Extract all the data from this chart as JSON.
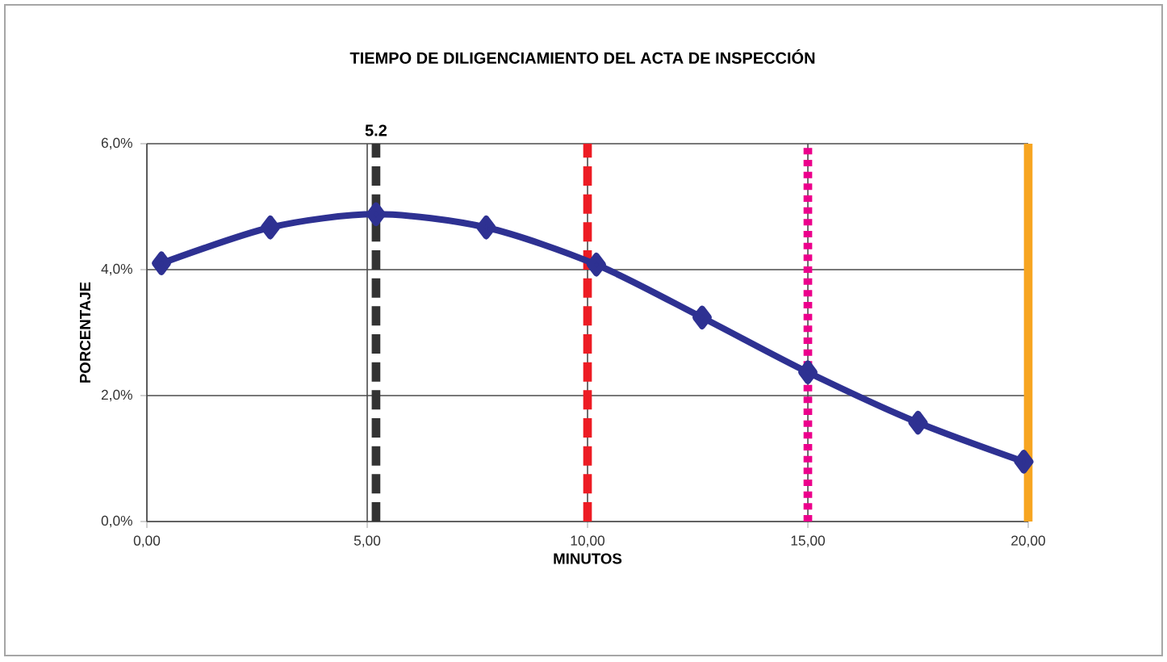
{
  "chart_data": {
    "type": "line",
    "title": "TIEMPO DE DILIGENCIAMIENTO DEL ACTA DE INSPECCIÓN",
    "xlabel": "MINUTOS",
    "ylabel": "PORCENTAJE",
    "x": [
      0.33,
      2.8,
      5.2,
      7.7,
      10.2,
      12.6,
      15.0,
      17.5,
      19.9
    ],
    "series": [
      {
        "color": "#2e3192",
        "values": [
          4.1,
          4.67,
          4.88,
          4.67,
          4.08,
          3.24,
          2.37,
          1.57,
          0.95
        ]
      }
    ],
    "xlim": [
      0,
      20
    ],
    "ylim": [
      0,
      6
    ],
    "xticks": [
      {
        "value": 0,
        "label": "0,00"
      },
      {
        "value": 5,
        "label": "5,00"
      },
      {
        "value": 10,
        "label": "10,00"
      },
      {
        "value": 15,
        "label": "15,00"
      },
      {
        "value": 20,
        "label": "20,00"
      }
    ],
    "yticks": [
      {
        "value": 0,
        "label": "0,0%"
      },
      {
        "value": 2,
        "label": "2,0%"
      },
      {
        "value": 4,
        "label": "4,0%"
      },
      {
        "value": 6,
        "label": "6,0%"
      }
    ],
    "grid": true,
    "marker": "diamond",
    "line_style": "solid",
    "ref_lines": [
      {
        "axis": "x",
        "value": 5.2,
        "label": "5.2",
        "color": "#333333",
        "line_style": "dashed"
      },
      {
        "axis": "x",
        "value": 10,
        "color": "#ed1c24",
        "line_style": "dashed"
      },
      {
        "axis": "x",
        "value": 15,
        "color": "#ec008c",
        "line_style": "dotted"
      },
      {
        "axis": "x",
        "value": 20,
        "color": "#f7a520",
        "line_style": "solid"
      }
    ]
  }
}
